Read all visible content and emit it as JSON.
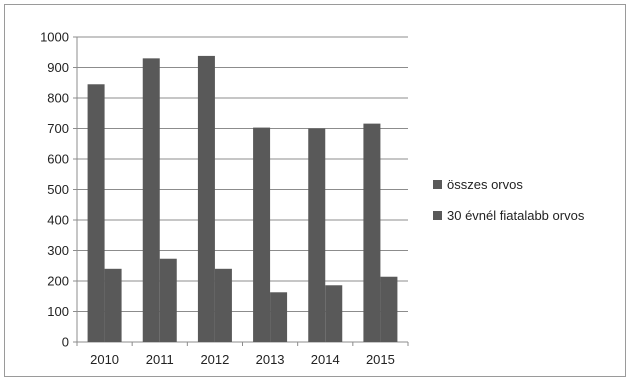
{
  "chart_data": {
    "type": "bar",
    "title": "",
    "xlabel": "",
    "ylabel": "",
    "categories": [
      "2010",
      "2011",
      "2012",
      "2013",
      "2014",
      "2015"
    ],
    "series": [
      {
        "name": "összes orvos",
        "values": [
          845,
          930,
          938,
          703,
          700,
          716
        ],
        "color": "#595959"
      },
      {
        "name": "30 évnél fiatalabb orvos",
        "values": [
          240,
          273,
          240,
          163,
          186,
          214
        ],
        "color": "#595959"
      }
    ],
    "ylim": [
      0,
      1000
    ],
    "yticks": [
      0,
      100,
      200,
      300,
      400,
      500,
      600,
      700,
      800,
      900,
      1000
    ],
    "grid": true,
    "legend_position": "right"
  }
}
